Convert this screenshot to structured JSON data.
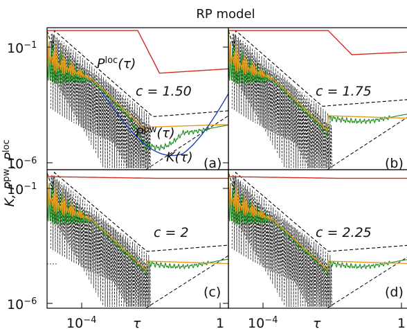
{
  "figure": {
    "title": "RP model",
    "ylabel": "K, P^pw, P^loc",
    "xlabel": "τ"
  },
  "chart_data": [
    {
      "type": "line",
      "panel": "(a)",
      "param_label": "c = 1.50",
      "series": [
        {
          "name": "P^loc(τ)",
          "color": "#d62728",
          "x": [
            1e-05,
            0.001,
            0.01,
            0.02,
            0.1,
            1
          ],
          "y": [
            0.7,
            0.7,
            0.45,
            0.006,
            0.012,
            0.014
          ]
        },
        {
          "name": "P^pw(τ)",
          "color": "#ff9f1c",
          "x": [
            1e-05,
            0.0001,
            0.001,
            0.01,
            0.1,
            1
          ],
          "y": [
            0.5,
            0.02,
            0.0005,
            8e-05,
            0.0001,
            0.00011
          ]
        },
        {
          "name": "K(τ)",
          "color": "#1f3fb4",
          "x": [
            1e-05,
            0.001,
            0.01,
            0.05,
            0.1,
            1
          ],
          "y": [
            0.5,
            0.0002,
            3e-06,
            1.5e-06,
            4e-06,
            2e-05
          ]
        }
      ],
      "labels": [
        "P^loc(τ)",
        "P^pw(τ)",
        "K(τ)"
      ]
    },
    {
      "type": "line",
      "panel": "(b)",
      "param_label": "c = 1.75",
      "series": [
        {
          "name": "P^loc",
          "color": "#d62728",
          "x": [
            1e-05,
            0.01,
            0.05,
            0.2,
            1
          ],
          "y": [
            0.7,
            0.7,
            0.08,
            0.05,
            0.06
          ]
        },
        {
          "name": "P^pw",
          "color": "#ff9f1c",
          "x": [
            1e-05,
            0.0001,
            0.001,
            0.01,
            1
          ],
          "y": [
            0.5,
            0.02,
            0.0005,
            6e-05,
            4e-05
          ]
        },
        {
          "name": "K",
          "color": "#1f3fb4",
          "x": [
            1e-05,
            0.001,
            0.01,
            0.1,
            1
          ],
          "y": [
            0.5,
            0.0002,
            6e-06,
            3e-06,
            9e-06
          ]
        }
      ]
    },
    {
      "type": "line",
      "panel": "(c)",
      "param_label": "c = 2",
      "series": [
        {
          "name": "P^loc",
          "color": "#d62728",
          "x": [
            1e-05,
            0.01,
            0.1,
            1
          ],
          "y": [
            0.7,
            0.5,
            0.4,
            0.45
          ]
        },
        {
          "name": "P^pw",
          "color": "#ff9f1c",
          "x": [
            1e-05,
            0.0001,
            0.001,
            0.01,
            1
          ],
          "y": [
            0.5,
            0.02,
            0.0005,
            5e-05,
            2e-05
          ]
        },
        {
          "name": "K",
          "color": "#1f3fb4",
          "x": [
            1e-05,
            0.001,
            0.01,
            0.1,
            1
          ],
          "y": [
            0.5,
            0.0002,
            1e-05,
            8e-06,
            1e-05
          ]
        }
      ]
    },
    {
      "type": "line",
      "panel": "(d)",
      "param_label": "c = 2.25",
      "series": [
        {
          "name": "P^loc",
          "color": "#d62728",
          "x": [
            1e-05,
            0.01,
            0.1,
            1
          ],
          "y": [
            0.7,
            0.6,
            0.55,
            0.6
          ]
        },
        {
          "name": "P^pw",
          "color": "#ff9f1c",
          "x": [
            1e-05,
            0.0001,
            0.001,
            0.01,
            1
          ],
          "y": [
            0.5,
            0.02,
            0.0005,
            4e-05,
            2e-05
          ]
        },
        {
          "name": "K",
          "color": "#1f3fb4",
          "x": [
            1e-05,
            0.001,
            0.01,
            0.1,
            1
          ],
          "y": [
            0.5,
            0.0002,
            1e-05,
            1e-05,
            1.2e-05
          ]
        }
      ]
    }
  ],
  "axis": {
    "xticks": [
      "10^-4",
      "1"
    ],
    "yticks": [
      "10^-1",
      "10^-6"
    ],
    "x_scale": "log",
    "y_scale": "log"
  }
}
